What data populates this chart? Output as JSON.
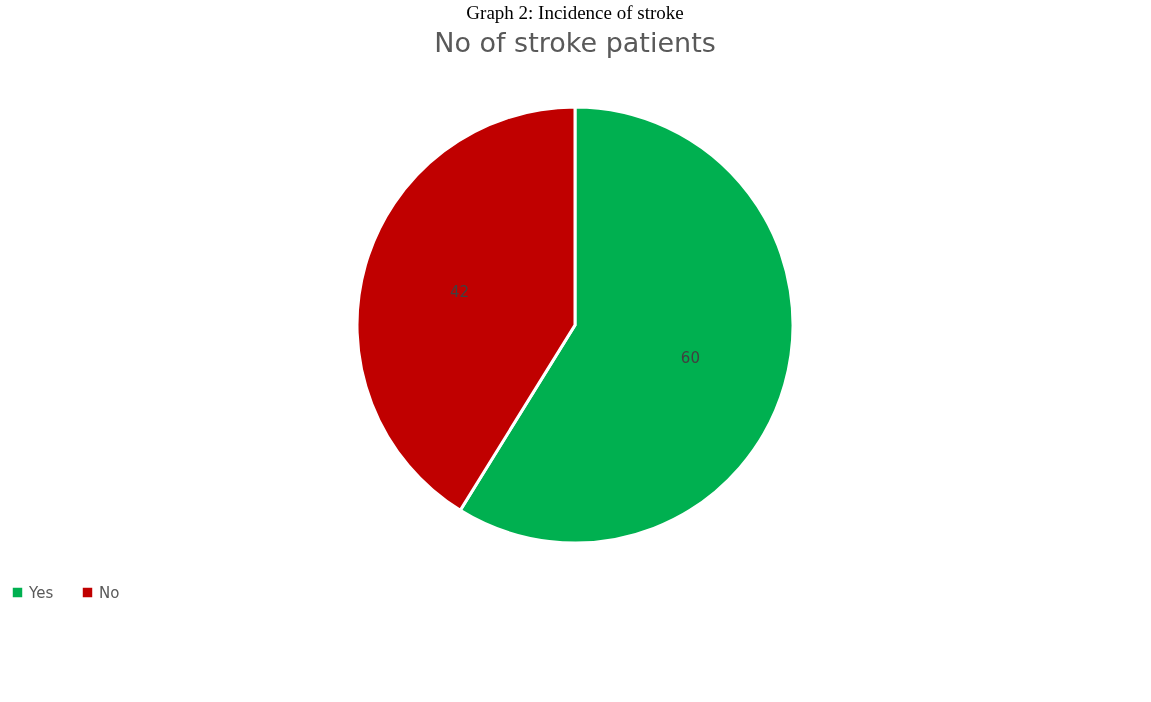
{
  "chart_data": {
    "type": "pie",
    "title": "Graph 2: Incidence of stroke",
    "subtitle": "No of stroke patients",
    "categories": [
      "Yes",
      "No"
    ],
    "values": [
      60,
      42
    ],
    "colors": [
      "#00b050",
      "#c00000"
    ],
    "data_labels": true,
    "legend": "bottom"
  }
}
